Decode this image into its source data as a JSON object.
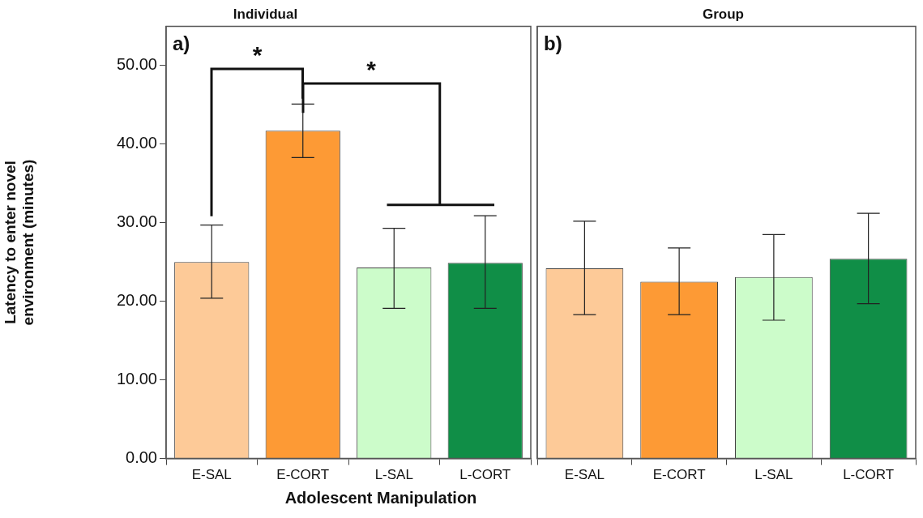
{
  "chart_data": [
    {
      "type": "bar",
      "title": "Individual",
      "xlabel": "Adolescent Manipulation",
      "ylabel": "Latency to enter novel environment (minutes)",
      "categories": [
        "E-SAL",
        "E-CORT",
        "L-SAL",
        "L-CORT"
      ],
      "values": [
        25.0,
        41.7,
        24.3,
        24.9
      ],
      "errors": [
        [
          20.4,
          29.7
        ],
        [
          38.3,
          45.1
        ],
        [
          19.1,
          29.3
        ],
        [
          19.1,
          30.9
        ]
      ],
      "colors": [
        "#fdca98",
        "#fd9a35",
        "#ccfcca",
        "#108e47"
      ],
      "ylim": [
        0,
        55
      ],
      "yticks": [
        {
          "value": 0,
          "label": "0.00"
        },
        {
          "value": 10,
          "label": "10.00"
        },
        {
          "value": 20,
          "label": "20.00"
        },
        {
          "value": 30,
          "label": "30.00"
        },
        {
          "value": 40,
          "label": "40.00"
        },
        {
          "value": 50,
          "label": "50.00"
        }
      ],
      "annotations": [
        "a)",
        "*",
        "*"
      ]
    },
    {
      "type": "bar",
      "title": "Group",
      "categories": [
        "E-SAL",
        "E-CORT",
        "L-SAL",
        "L-CORT"
      ],
      "values": [
        24.2,
        22.5,
        23.1,
        25.4
      ],
      "errors": [
        [
          18.3,
          30.2
        ],
        [
          18.3,
          26.8
        ],
        [
          17.6,
          28.5
        ],
        [
          19.7,
          31.2
        ]
      ],
      "colors": [
        "#fdca98",
        "#fd9a35",
        "#ccfcca",
        "#108e47"
      ],
      "ylim": [
        0,
        55
      ],
      "tick_labels": "x",
      "annotations": [
        "b)"
      ]
    }
  ]
}
